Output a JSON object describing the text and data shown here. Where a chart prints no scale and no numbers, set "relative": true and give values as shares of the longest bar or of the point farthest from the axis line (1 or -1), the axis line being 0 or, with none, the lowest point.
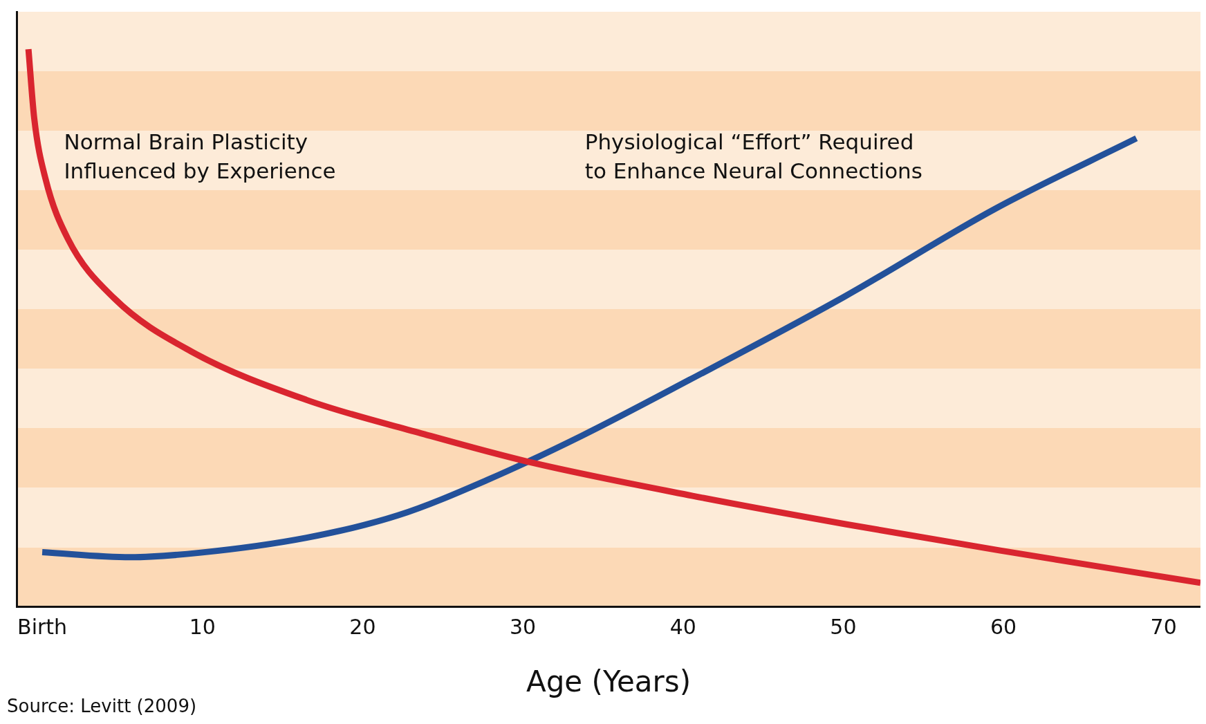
{
  "chart_data": {
    "type": "line",
    "relative": true,
    "xlabel": "Age (Years)",
    "annotations": [
      "Source: Levitt (2009)"
    ],
    "xlim": [
      -1.6,
      72.3
    ],
    "xticks": [
      {
        "value": 0,
        "label": "Birth"
      },
      10,
      20,
      30,
      40,
      50,
      60,
      70
    ],
    "series": [
      {
        "name": "Normal Brain Plasticity Influenced by Experience",
        "color": "#d9252f",
        "x": [
          -0.86,
          -0.5,
          0.2,
          1.6,
          4.5,
          9.3,
          16.5,
          23.8,
          30.5,
          40.6,
          50.2,
          59.8,
          72.3
        ],
        "values": [
          1.0,
          0.876,
          0.768,
          0.66,
          0.553,
          0.458,
          0.371,
          0.31,
          0.259,
          0.199,
          0.148,
          0.101,
          0.043
        ]
      },
      {
        "name": "Physiological “Effort” Required to Enhance Neural Connections",
        "color": "#23519a",
        "x": [
          0,
          5.5,
          9.8,
          16.5,
          22.2,
          27.9,
          33.7,
          40.4,
          50,
          59.5,
          68.3
        ],
        "values": [
          0.098,
          0.089,
          0.097,
          0.124,
          0.164,
          0.229,
          0.307,
          0.407,
          0.555,
          0.714,
          0.84
        ]
      }
    ]
  }
}
